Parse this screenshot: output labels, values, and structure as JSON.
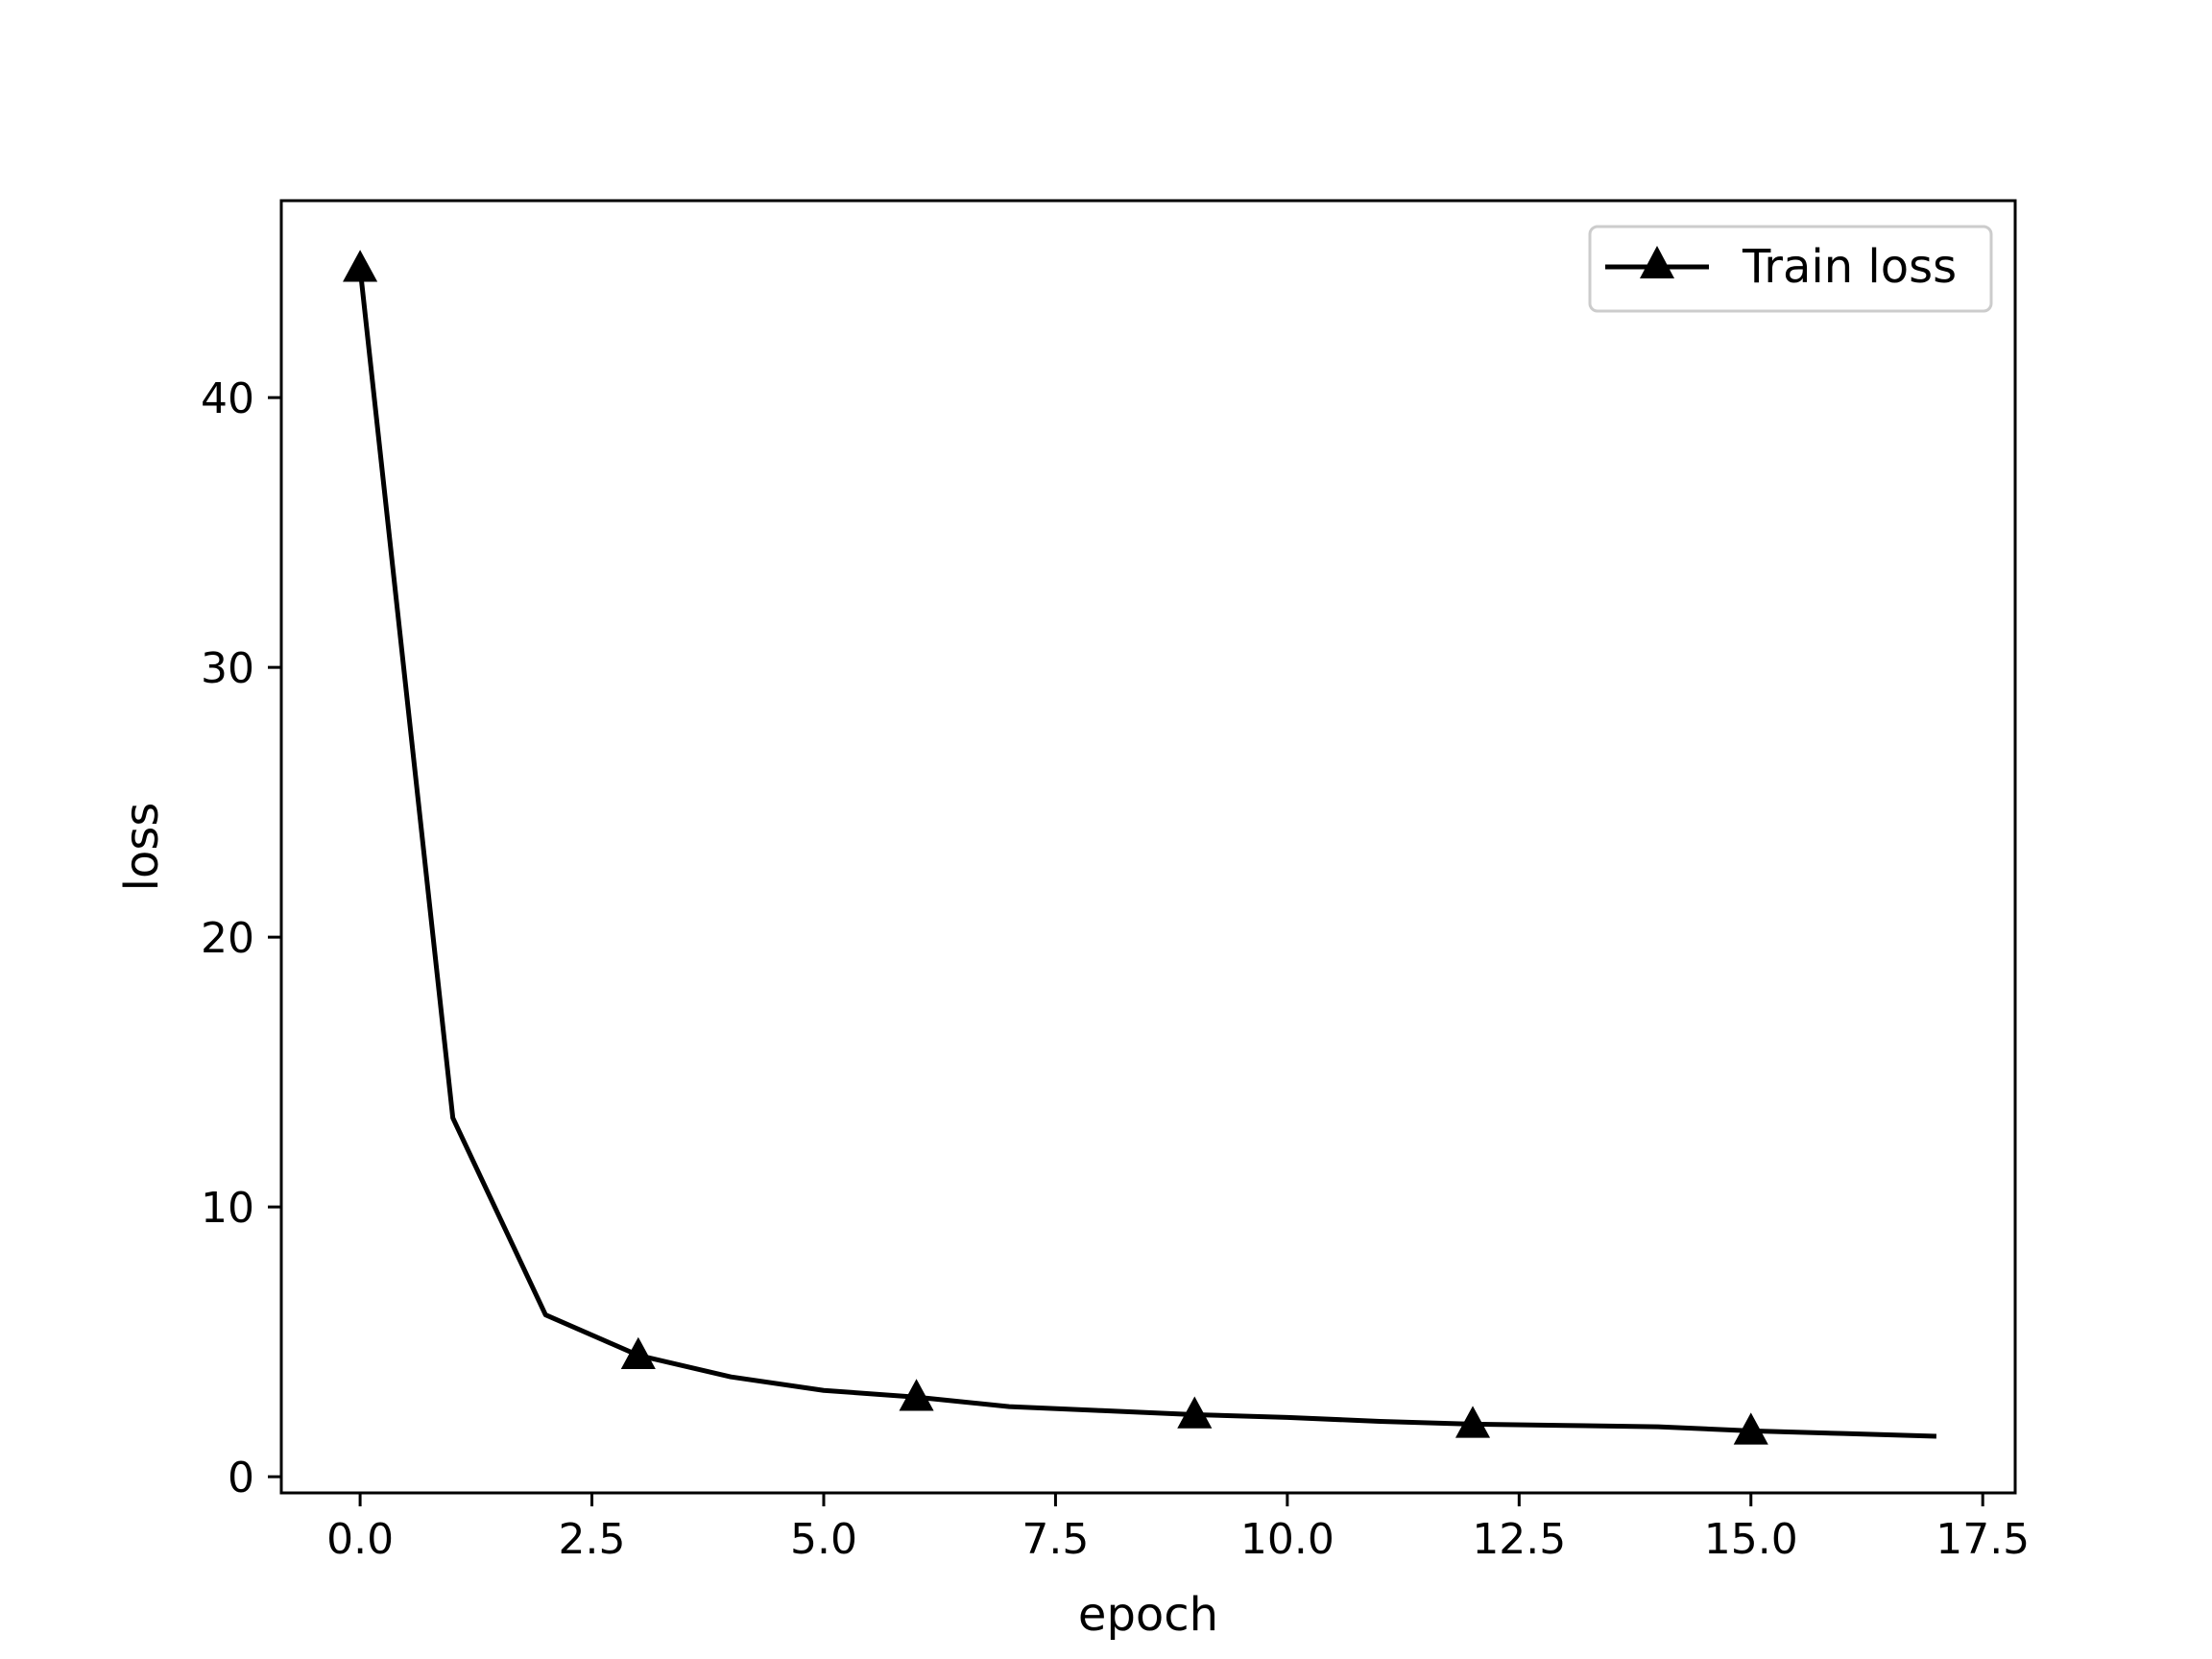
{
  "chart_data": {
    "type": "line",
    "title": "",
    "xlabel": "epoch",
    "ylabel": "loss",
    "xlim": [
      -0.85,
      17.85
    ],
    "ylim": [
      -0.6,
      47.3
    ],
    "xticks": [
      0.0,
      2.5,
      5.0,
      7.5,
      10.0,
      12.5,
      15.0,
      17.5
    ],
    "xtick_labels": [
      "0.0",
      "2.5",
      "5.0",
      "7.5",
      "10.0",
      "12.5",
      "15.0",
      "17.5"
    ],
    "yticks": [
      0,
      10,
      20,
      30,
      40
    ],
    "ytick_labels": [
      "0",
      "10",
      "20",
      "30",
      "40"
    ],
    "grid": false,
    "legend_position": "top-right",
    "series": [
      {
        "name": "Train loss",
        "color": "#000000",
        "marker": "triangle-up",
        "marker_every": 3,
        "x": [
          0,
          1,
          2,
          3,
          4,
          5,
          6,
          7,
          8,
          9,
          10,
          11,
          12,
          13,
          14,
          15,
          16,
          17
        ],
        "y": [
          44.8,
          13.3,
          6.0,
          4.5,
          3.7,
          3.2,
          2.95,
          2.6,
          2.45,
          2.3,
          2.2,
          2.05,
          1.95,
          1.9,
          1.85,
          1.7,
          1.6,
          1.5
        ]
      }
    ]
  }
}
